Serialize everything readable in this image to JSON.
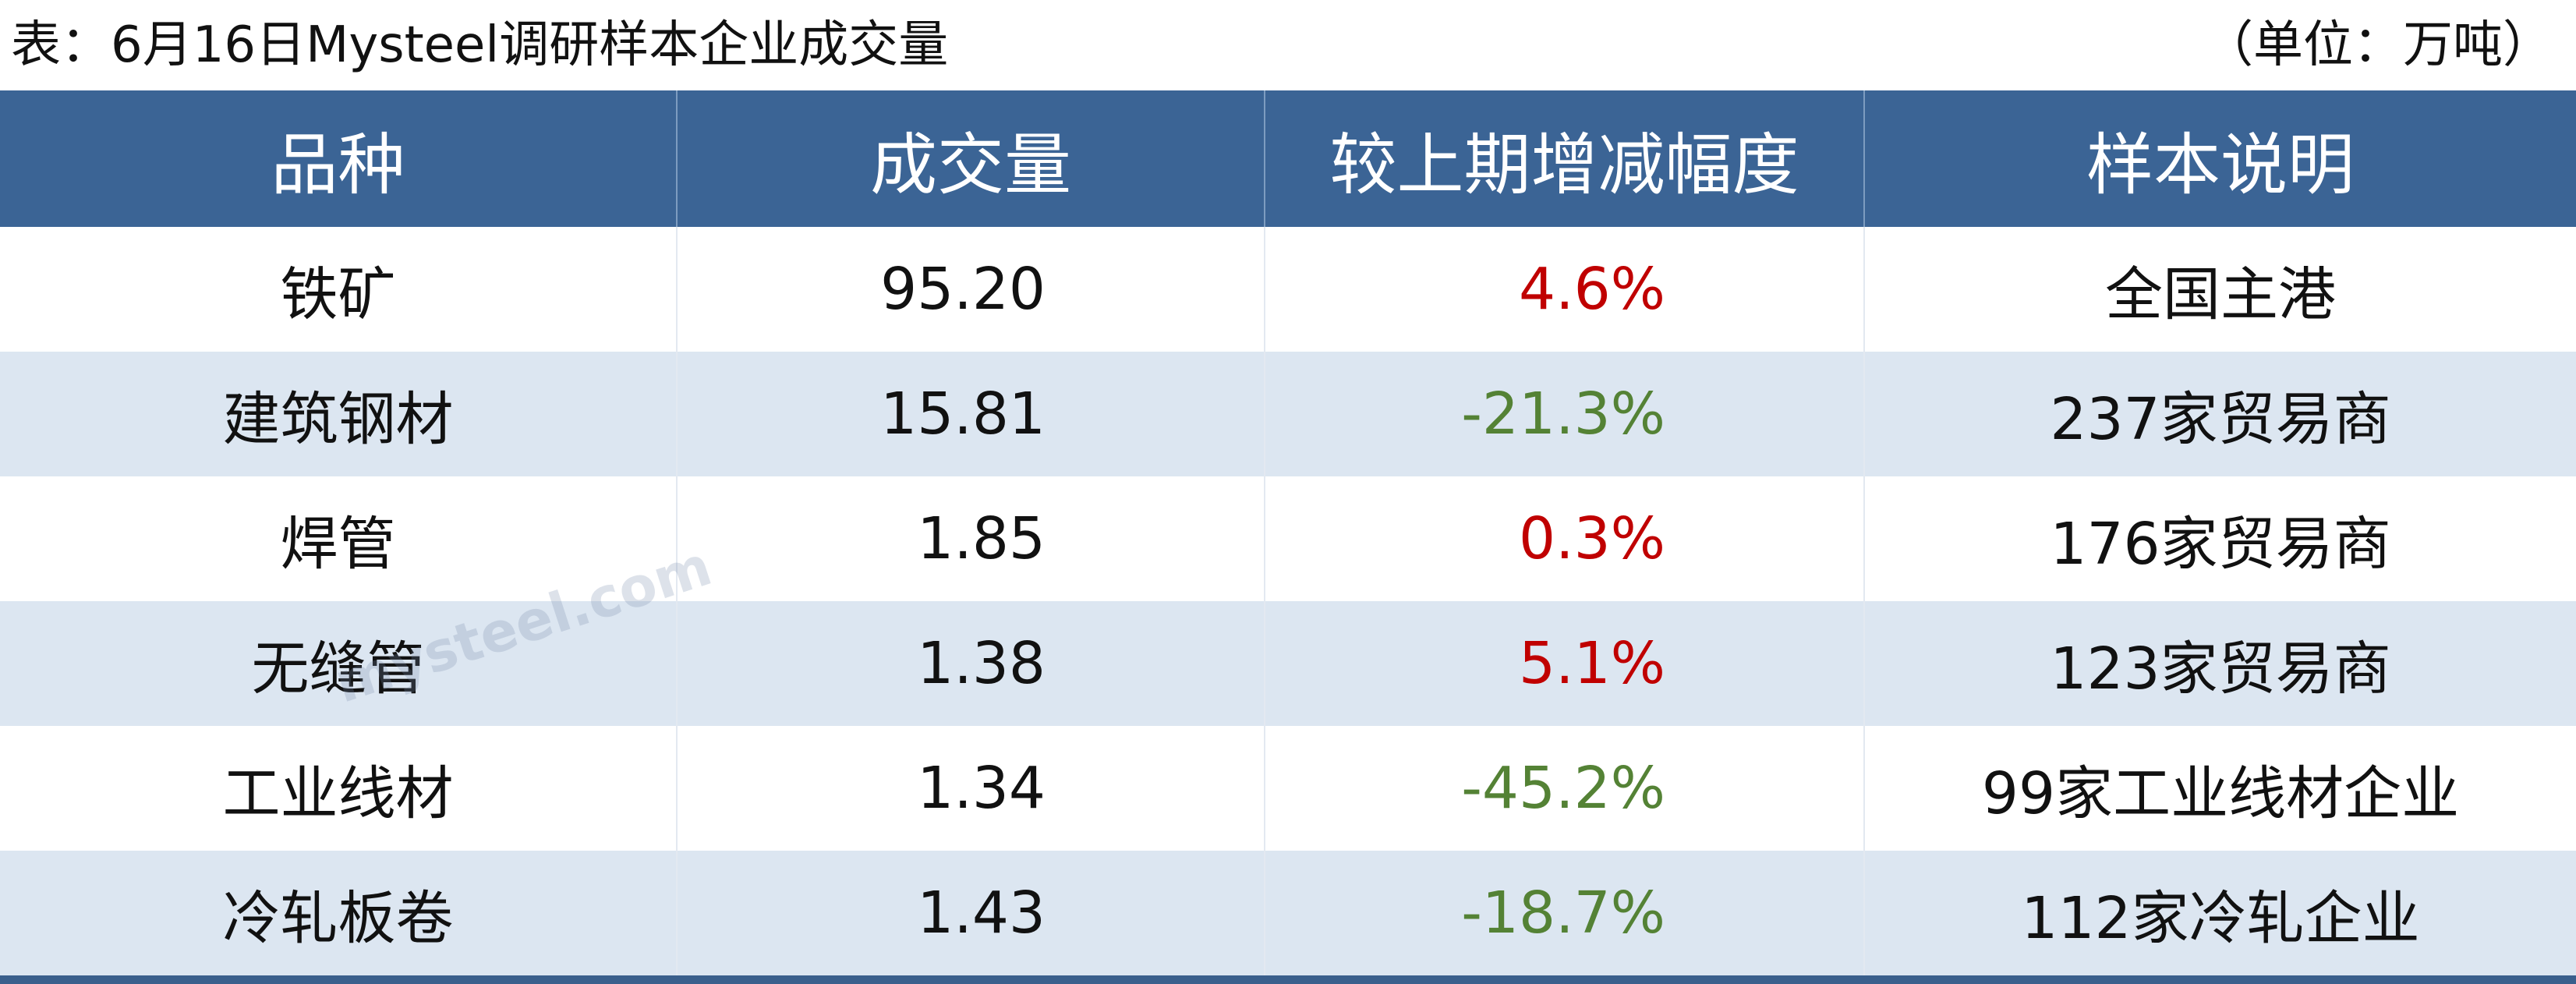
{
  "title": "表：6月16日Mysteel调研样本企业成交量",
  "unit": "（单位：万吨）",
  "watermark": "mysteel.com",
  "table": {
    "headers": [
      "品种",
      "成交量",
      "较上期增减幅度",
      "样本说明"
    ],
    "rows": [
      [
        "铁矿",
        "95.20",
        "4.6%",
        "全国主港"
      ],
      [
        "建筑钢材",
        "15.81",
        "-21.3%",
        "237家贸易商"
      ],
      [
        "焊管",
        "1.85",
        "0.3%",
        "176家贸易商"
      ],
      [
        "无缝管",
        "1.38",
        "5.1%",
        "123家贸易商"
      ],
      [
        "工业线材",
        "1.34",
        "-45.2%",
        "99家工业线材企业"
      ],
      [
        "冷轧板卷",
        "1.43",
        "-18.7%",
        "112家冷轧企业"
      ]
    ],
    "up_color": "#c00000",
    "down_color": "#548235"
  }
}
